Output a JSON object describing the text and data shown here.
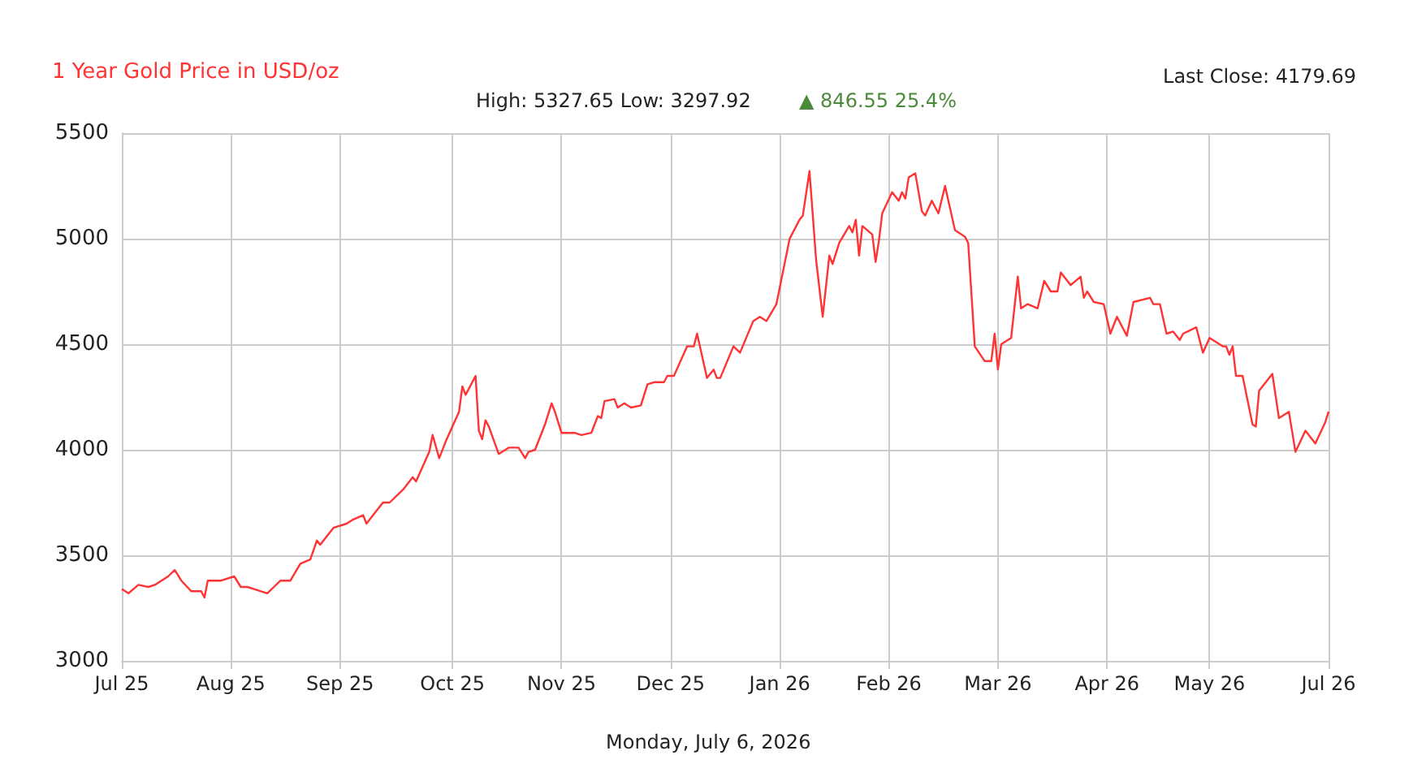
{
  "chart_data": {
    "type": "line",
    "title": "1 Year Gold Price in USD/oz",
    "subtitle": "High: 5327.65 Low: 3297.92",
    "annotations": [
      "▲ 846.55 25.4%",
      "Last Close: 4179.69",
      "Monday, July 6, 2026"
    ],
    "x": [
      "2025-07-06",
      "2025-07-08",
      "2025-07-11",
      "2025-07-14",
      "2025-07-16",
      "2025-07-20",
      "2025-07-22",
      "2025-07-24",
      "2025-07-27",
      "2025-07-30",
      "2025-07-31",
      "2025-08-01",
      "2025-08-05",
      "2025-08-09",
      "2025-08-11",
      "2025-08-13",
      "2025-08-15",
      "2025-08-19",
      "2025-08-21",
      "2025-08-23",
      "2025-08-26",
      "2025-08-29",
      "2025-09-01",
      "2025-09-03",
      "2025-09-04",
      "2025-09-08",
      "2025-09-12",
      "2025-09-14",
      "2025-09-17",
      "2025-09-18",
      "2025-09-20",
      "2025-09-23",
      "2025-09-25",
      "2025-09-29",
      "2025-10-02",
      "2025-10-03",
      "2025-10-05",
      "2025-10-07",
      "2025-10-08",
      "2025-10-10",
      "2025-10-12",
      "2025-10-16",
      "2025-10-17",
      "2025-10-18",
      "2025-10-21",
      "2025-10-22",
      "2025-10-23",
      "2025-10-24",
      "2025-10-25",
      "2025-10-28",
      "2025-10-31",
      "2025-11-03",
      "2025-11-05",
      "2025-11-06",
      "2025-11-08",
      "2025-11-11",
      "2025-11-13",
      "2025-11-14",
      "2025-11-16",
      "2025-11-20",
      "2025-11-22",
      "2025-11-25",
      "2025-11-27",
      "2025-11-28",
      "2025-11-29",
      "2025-12-02",
      "2025-12-03",
      "2025-12-05",
      "2025-12-07",
      "2025-12-10",
      "2025-12-12",
      "2025-12-14",
      "2025-12-17",
      "2025-12-18",
      "2025-12-20",
      "2025-12-24",
      "2025-12-26",
      "2025-12-27",
      "2025-12-30",
      "2026-01-01",
      "2026-01-02",
      "2026-01-03",
      "2026-01-07",
      "2026-01-09",
      "2026-01-13",
      "2026-01-15",
      "2026-01-17",
      "2026-01-20",
      "2026-01-24",
      "2026-01-27",
      "2026-01-28",
      "2026-01-30",
      "2026-02-01",
      "2026-02-03",
      "2026-02-05",
      "2026-02-06",
      "2026-02-08",
      "2026-02-11",
      "2026-02-12",
      "2026-02-13",
      "2026-02-14",
      "2026-02-15",
      "2026-02-18",
      "2026-02-19",
      "2026-02-20",
      "2026-02-21",
      "2026-02-24",
      "2026-02-26",
      "2026-02-27",
      "2026-02-28",
      "2026-03-01",
      "2026-03-03",
      "2026-03-05",
      "2026-03-06",
      "2026-03-08",
      "2026-03-10",
      "2026-03-12",
      "2026-03-15",
      "2026-03-18",
      "2026-03-19",
      "2026-03-21",
      "2026-03-24",
      "2026-03-26",
      "2026-03-27",
      "2026-03-28",
      "2026-03-29",
      "2026-04-01",
      "2026-04-03",
      "2026-04-04",
      "2026-04-06",
      "2026-04-09",
      "2026-04-11",
      "2026-04-13",
      "2026-04-15",
      "2026-04-16",
      "2026-04-19",
      "2026-04-22",
      "2026-04-23",
      "2026-04-24",
      "2026-04-26",
      "2026-04-29",
      "2026-05-01",
      "2026-05-03",
      "2026-05-06",
      "2026-05-08",
      "2026-05-13",
      "2026-05-14",
      "2026-05-16",
      "2026-05-18",
      "2026-05-20",
      "2026-05-22",
      "2026-05-23",
      "2026-05-27",
      "2026-05-29",
      "2026-05-31",
      "2026-06-04",
      "2026-06-05",
      "2026-06-06",
      "2026-06-07",
      "2026-06-08",
      "2026-06-10",
      "2026-06-13",
      "2026-06-14",
      "2026-06-15",
      "2026-06-19",
      "2026-06-21",
      "2026-06-24",
      "2026-06-26",
      "2026-06-29",
      "2026-07-02",
      "2026-07-05",
      "2026-07-06"
    ],
    "series": [
      {
        "color": "#ff3333",
        "values": [
          3340,
          3320,
          3360,
          3350,
          3360,
          3400,
          3430,
          3380,
          3330,
          3330,
          3300,
          3380,
          3380,
          3400,
          3350,
          3350,
          3340,
          3320,
          3350,
          3380,
          3380,
          3460,
          3480,
          3570,
          3550,
          3630,
          3650,
          3670,
          3690,
          3650,
          3690,
          3750,
          3750,
          3810,
          3870,
          3850,
          3920,
          3990,
          4070,
          3960,
          4040,
          4180,
          4300,
          4260,
          4350,
          4090,
          4050,
          4140,
          4110,
          3980,
          4010,
          4010,
          3960,
          3990,
          4000,
          4120,
          4220,
          4180,
          4080,
          4080,
          4070,
          4080,
          4160,
          4150,
          4230,
          4240,
          4200,
          4220,
          4200,
          4210,
          4310,
          4320,
          4320,
          4350,
          4350,
          4490,
          4490,
          4550,
          4340,
          4380,
          4340,
          4340,
          4490,
          4460,
          4610,
          4630,
          4610,
          4690,
          5000,
          5090,
          5110,
          5320,
          4900,
          4630,
          4920,
          4880,
          4980,
          5060,
          5030,
          5090,
          4920,
          5060,
          5020,
          4890,
          4990,
          5120,
          5220,
          5180,
          5220,
          5190,
          5290,
          5310,
          5130,
          5110,
          5180,
          5120,
          5250,
          5040,
          5010,
          4980,
          4490,
          4420,
          4420,
          4550,
          4380,
          4500,
          4530,
          4820,
          4670,
          4690,
          4670,
          4800,
          4750,
          4750,
          4840,
          4780,
          4820,
          4720,
          4750,
          4700,
          4690,
          4550,
          4630,
          4540,
          4700,
          4720,
          4690,
          4690,
          4550,
          4560,
          4520,
          4550,
          4580,
          4460,
          4530,
          4490,
          4490,
          4450,
          4490,
          4350,
          4350,
          4120,
          4110,
          4280,
          4360,
          4150,
          4180,
          3990,
          4090,
          4030,
          4130,
          4180
        ]
      }
    ],
    "xlim": [
      "2025-07-06",
      "2026-07-06"
    ],
    "xticks": [
      {
        "value": "2025-07-06",
        "label": "Jul 25"
      },
      {
        "value": "2025-08-08",
        "label": "Aug 25"
      },
      {
        "value": "2025-09-10",
        "label": "Sep 25"
      },
      {
        "value": "2025-10-14",
        "label": "Oct 25"
      },
      {
        "value": "2025-11-16",
        "label": "Nov 25"
      },
      {
        "value": "2025-12-19",
        "label": "Dec 25"
      },
      {
        "value": "2026-01-21",
        "label": "Jan 26"
      },
      {
        "value": "2026-02-23",
        "label": "Feb 26"
      },
      {
        "value": "2026-03-28",
        "label": "Mar 26"
      },
      {
        "value": "2026-04-30",
        "label": "Apr 26"
      },
      {
        "value": "2026-05-31",
        "label": "May 26"
      },
      {
        "value": "2026-07-06",
        "label": "Jul 26"
      }
    ],
    "ylim": [
      3000,
      5500
    ],
    "yticks": [
      3000,
      3500,
      4000,
      4500,
      5000,
      5500
    ],
    "grid": true,
    "marker": "none",
    "line_style": "solid"
  }
}
